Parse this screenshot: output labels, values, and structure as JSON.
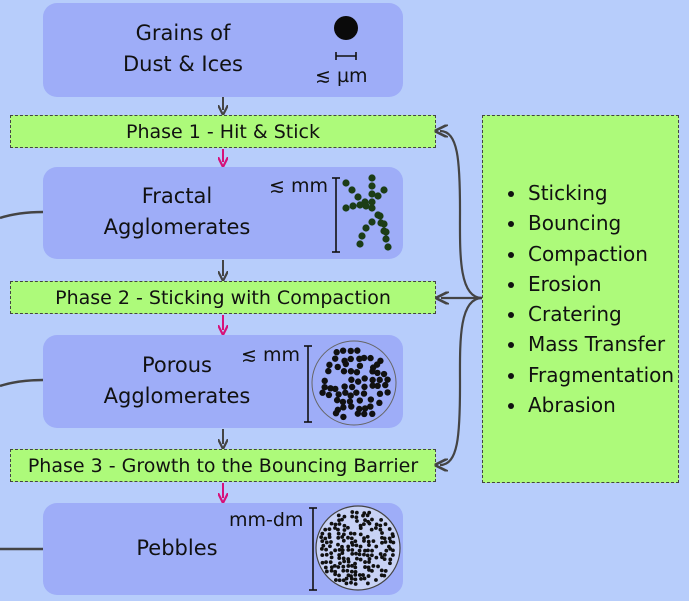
{
  "stages": [
    {
      "label_line1": "Grains of",
      "label_line2": "Dust & Ices",
      "size": "≲ µm"
    },
    {
      "label_line1": "Fractal",
      "label_line2": "Agglomerates",
      "size": "≲ mm"
    },
    {
      "label_line1": "Porous",
      "label_line2": "Agglomerates",
      "size": "≲ mm"
    },
    {
      "label_line1": "Pebbles",
      "label_line2": "",
      "size": "mm-dm"
    }
  ],
  "phases": [
    "Phase 1 - Hit & Stick",
    "Phase 2 - Sticking with Compaction",
    "Phase 3 - Growth to the Bouncing Barrier"
  ],
  "processes": [
    "Sticking",
    "Bouncing",
    "Compaction",
    "Erosion",
    "Cratering",
    "Mass Transfer",
    "Fragmentation",
    "Abrasion"
  ],
  "colors": {
    "background": "#b7cdfb",
    "stage_box": "#9eadf8",
    "phase_box": "#adfa7a",
    "arrow_dark": "#444444",
    "arrow_accent": "#d6117a"
  },
  "icons": [
    "single-grain-icon",
    "fractal-chain-icon",
    "porous-cluster-icon",
    "pebble-cluster-icon"
  ]
}
